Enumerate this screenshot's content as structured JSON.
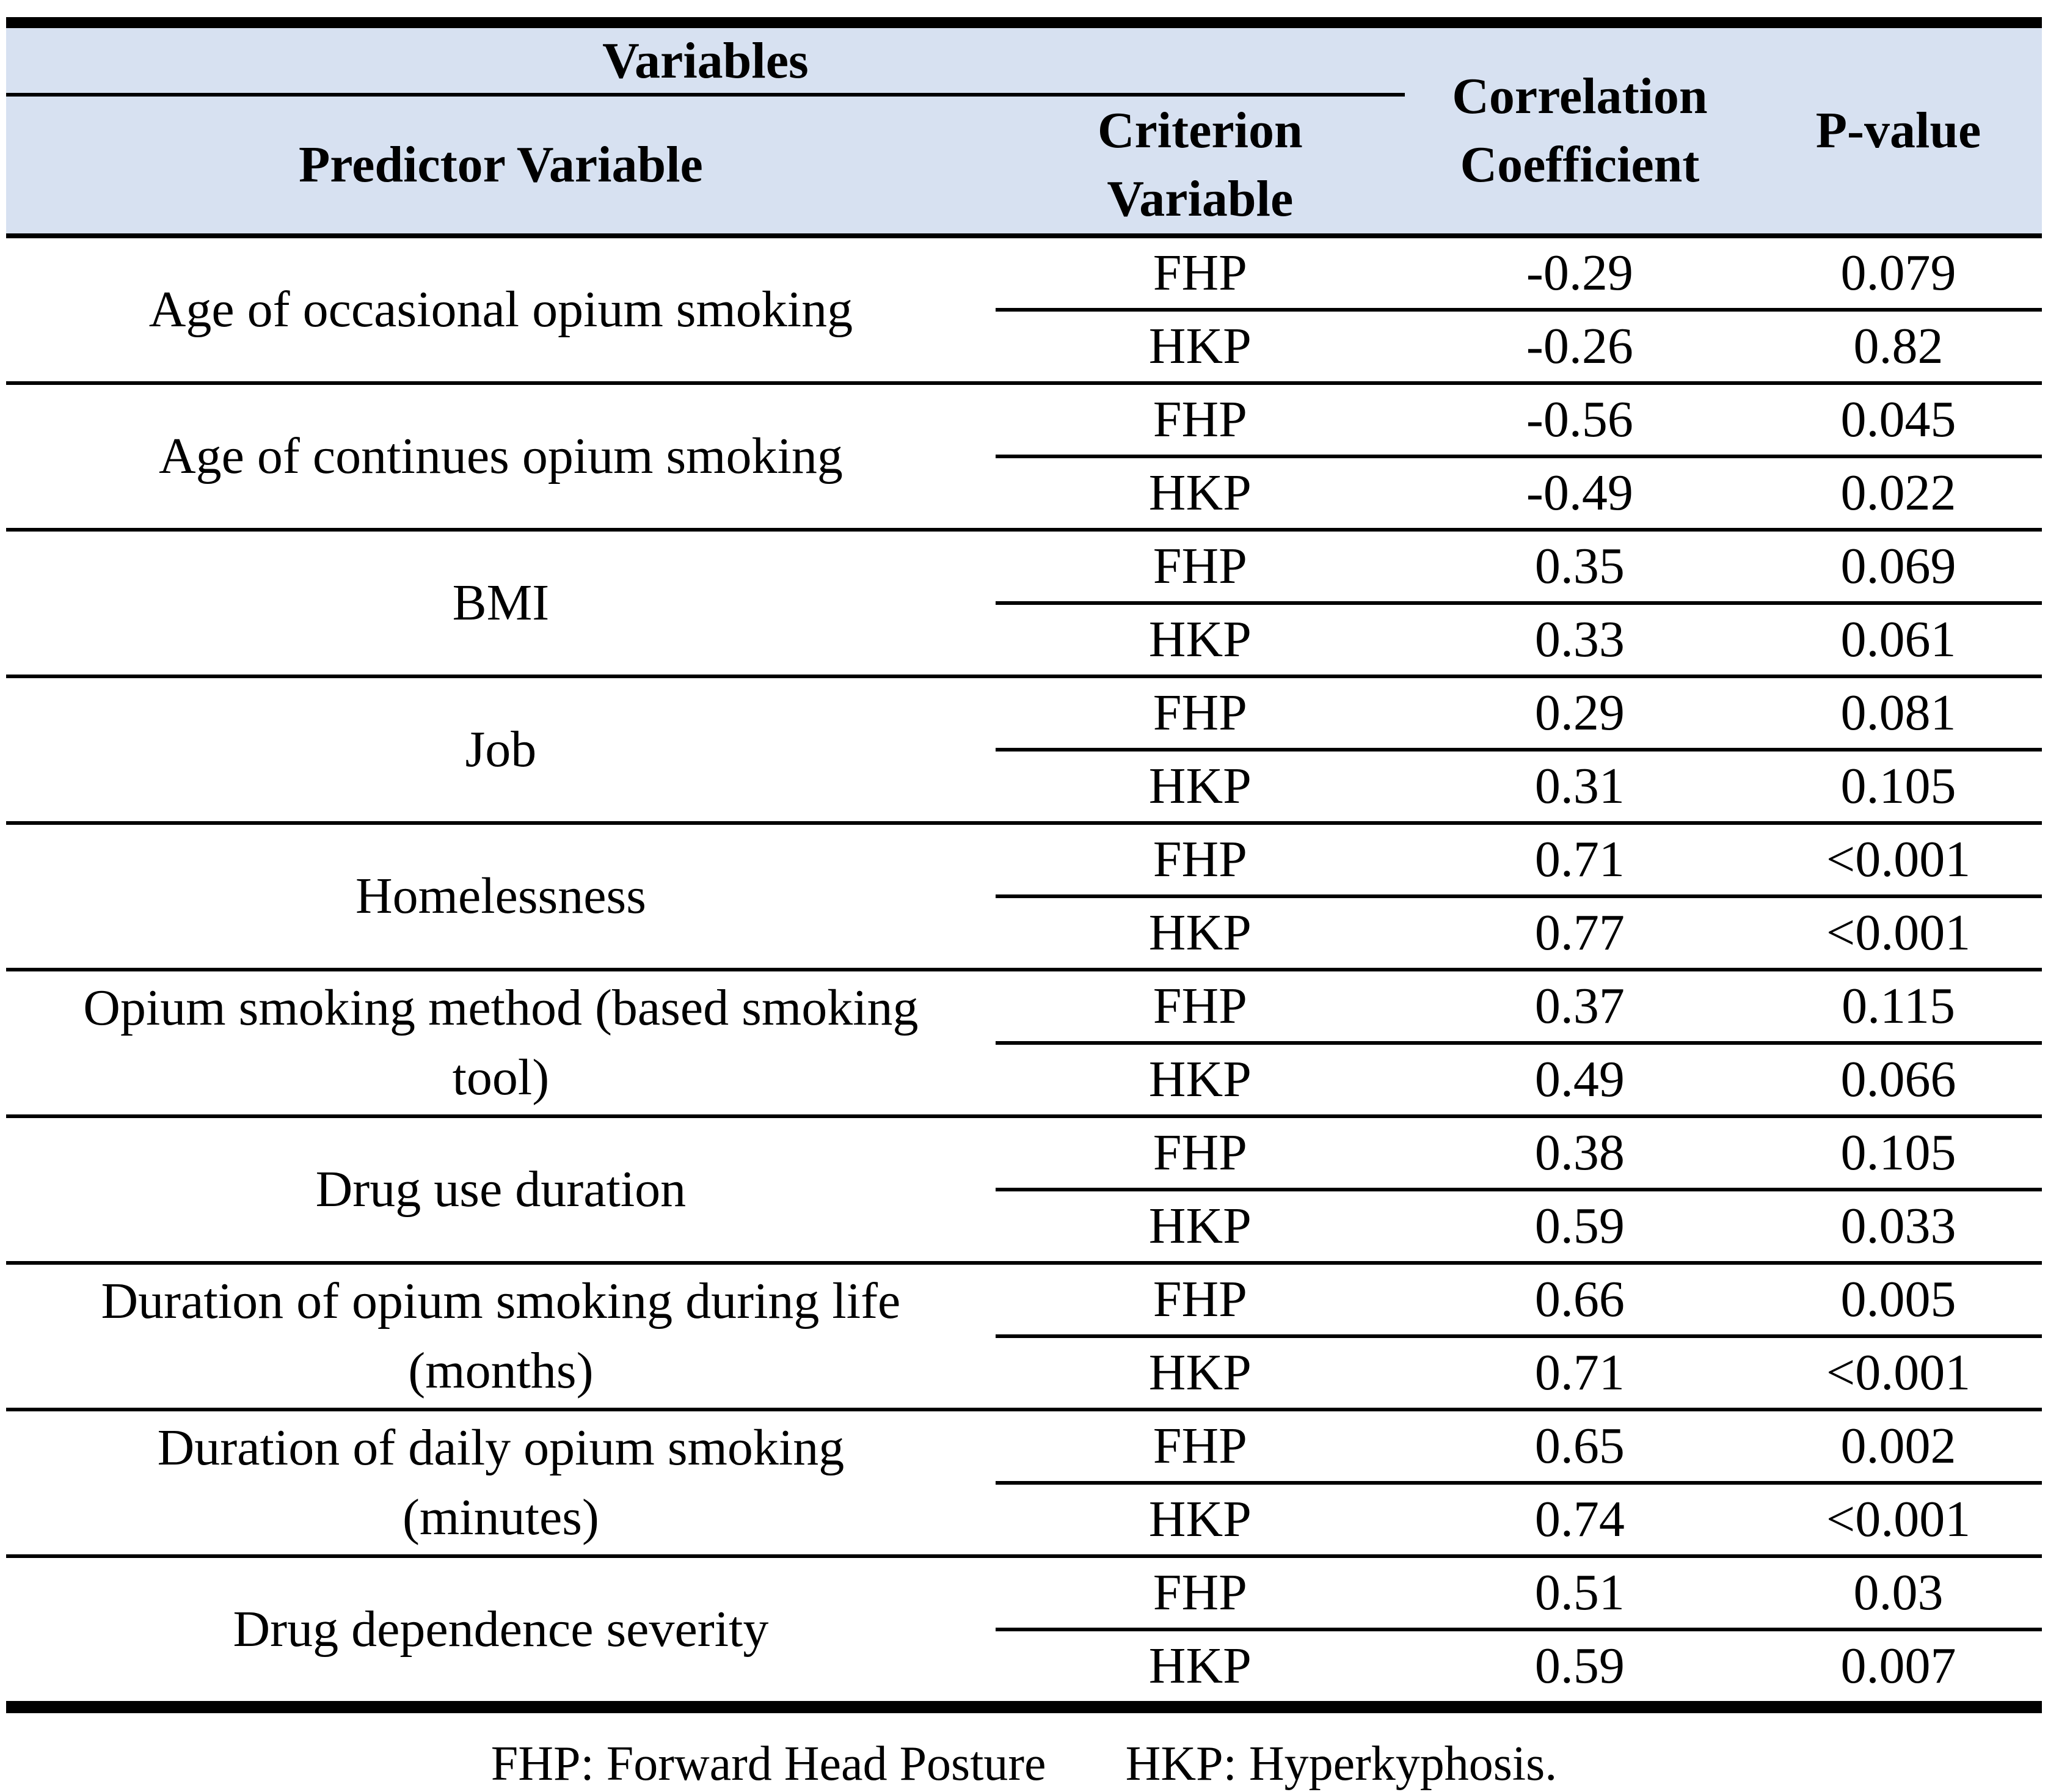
{
  "colors": {
    "header_bg": "#d7e1f1",
    "border": "#000000",
    "text": "#000000"
  },
  "table": {
    "header": {
      "variables_label": "Variables",
      "predictor_label": "Predictor Variable",
      "criterion_label": "Criterion\nVariable",
      "correlation_label": "Correlation\nCoefficient",
      "pvalue_label": "P-value"
    },
    "groups": [
      {
        "predictor": "Age of occasional opium smoking",
        "rows": [
          {
            "criterion": "FHP",
            "r": "-0.29",
            "p": "0.079"
          },
          {
            "criterion": "HKP",
            "r": "-0.26",
            "p": "0.82"
          }
        ]
      },
      {
        "predictor": "Age of continues opium smoking",
        "rows": [
          {
            "criterion": "FHP",
            "r": "-0.56",
            "p": "0.045"
          },
          {
            "criterion": "HKP",
            "r": "-0.49",
            "p": "0.022"
          }
        ]
      },
      {
        "predictor": "BMI",
        "rows": [
          {
            "criterion": "FHP",
            "r": "0.35",
            "p": "0.069"
          },
          {
            "criterion": "HKP",
            "r": "0.33",
            "p": "0.061"
          }
        ]
      },
      {
        "predictor": "Job",
        "rows": [
          {
            "criterion": "FHP",
            "r": "0.29",
            "p": "0.081"
          },
          {
            "criterion": "HKP",
            "r": "0.31",
            "p": "0.105"
          }
        ]
      },
      {
        "predictor": "Homelessness",
        "rows": [
          {
            "criterion": "FHP",
            "r": "0.71",
            "p": "<0.001"
          },
          {
            "criterion": "HKP",
            "r": "0.77",
            "p": "<0.001"
          }
        ]
      },
      {
        "predictor": "Opium smoking method (based smoking\ntool)",
        "rows": [
          {
            "criterion": "FHP",
            "r": "0.37",
            "p": "0.115"
          },
          {
            "criterion": "HKP",
            "r": "0.49",
            "p": "0.066"
          }
        ]
      },
      {
        "predictor": "Drug use duration",
        "rows": [
          {
            "criterion": "FHP",
            "r": "0.38",
            "p": "0.105"
          },
          {
            "criterion": "HKP",
            "r": "0.59",
            "p": "0.033"
          }
        ]
      },
      {
        "predictor": "Duration of opium smoking during life\n(months)",
        "rows": [
          {
            "criterion": "FHP",
            "r": "0.66",
            "p": "0.005"
          },
          {
            "criterion": "HKP",
            "r": "0.71",
            "p": "<0.001"
          }
        ]
      },
      {
        "predictor": "Duration of daily opium smoking\n(minutes)",
        "rows": [
          {
            "criterion": "FHP",
            "r": "0.65",
            "p": "0.002"
          },
          {
            "criterion": "HKP",
            "r": "0.74",
            "p": "<0.001"
          }
        ]
      },
      {
        "predictor": "Drug dependence severity",
        "rows": [
          {
            "criterion": "FHP",
            "r": "0.51",
            "p": "0.03"
          },
          {
            "criterion": "HKP",
            "r": "0.59",
            "p": "0.007"
          }
        ]
      }
    ],
    "footer": {
      "fhp_note": "FHP: Forward Head Posture",
      "hkp_note": "HKP: Hyperkyphosis."
    }
  }
}
